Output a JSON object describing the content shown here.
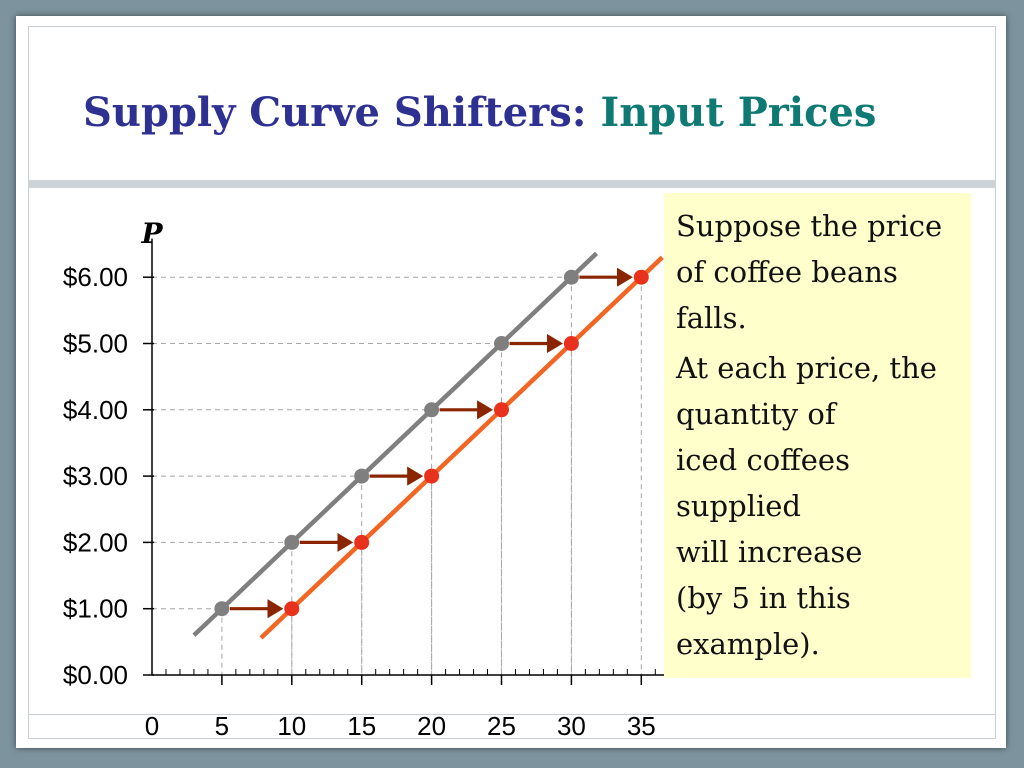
{
  "slide": {
    "title_main": "Supply Curve Shifters:",
    "title_accent": "Input Prices"
  },
  "note": {
    "paragraph1": [
      "Suppose the price",
      "of coffee beans",
      "falls."
    ],
    "paragraph2": [
      "At each price, the",
      "quantity of",
      "iced coffees",
      "supplied",
      "will increase",
      "(by 5 in this",
      "example)."
    ]
  },
  "chart_data": {
    "type": "line",
    "title": "",
    "ylabel": "P",
    "xlabel": "",
    "xlim": [
      0,
      36
    ],
    "ylim": [
      0,
      6.4
    ],
    "x_ticks": [
      "0",
      "5",
      "10",
      "15",
      "20",
      "25",
      "30",
      "35"
    ],
    "x_tick_values": [
      0,
      5,
      10,
      15,
      20,
      25,
      30,
      35
    ],
    "y_ticks": [
      "$0.00",
      "$1.00",
      "$2.00",
      "$3.00",
      "$4.00",
      "$5.00",
      "$6.00"
    ],
    "y_tick_values": [
      0,
      1,
      2,
      3,
      4,
      5,
      6
    ],
    "grid": "dashed guide lines to points",
    "series": [
      {
        "color": "#7f7f7f",
        "points": [
          [
            5,
            1
          ],
          [
            10,
            2
          ],
          [
            15,
            3
          ],
          [
            20,
            4
          ],
          [
            25,
            5
          ],
          [
            30,
            6
          ]
        ],
        "line_extent": [
          [
            3.0,
            0.6
          ],
          [
            31.8,
            6.36
          ]
        ]
      },
      {
        "color": "#f26522",
        "points": [
          [
            10,
            1
          ],
          [
            15,
            2
          ],
          [
            20,
            3
          ],
          [
            25,
            4
          ],
          [
            30,
            5
          ],
          [
            35,
            6
          ]
        ],
        "line_extent": [
          [
            7.8,
            0.56
          ],
          [
            36.5,
            6.3
          ]
        ]
      }
    ],
    "point_colors": {
      "original": "#7f7f7f",
      "shifted": "#e8321e"
    },
    "arrows": {
      "color": "#8b2500",
      "from_to": [
        [
          [
            5,
            1
          ],
          [
            10,
            1
          ]
        ],
        [
          [
            10,
            2
          ],
          [
            15,
            2
          ]
        ],
        [
          [
            15,
            3
          ],
          [
            20,
            3
          ]
        ],
        [
          [
            20,
            4
          ],
          [
            25,
            4
          ]
        ],
        [
          [
            25,
            5
          ],
          [
            30,
            5
          ]
        ],
        [
          [
            30,
            6
          ],
          [
            35,
            6
          ]
        ]
      ]
    }
  }
}
